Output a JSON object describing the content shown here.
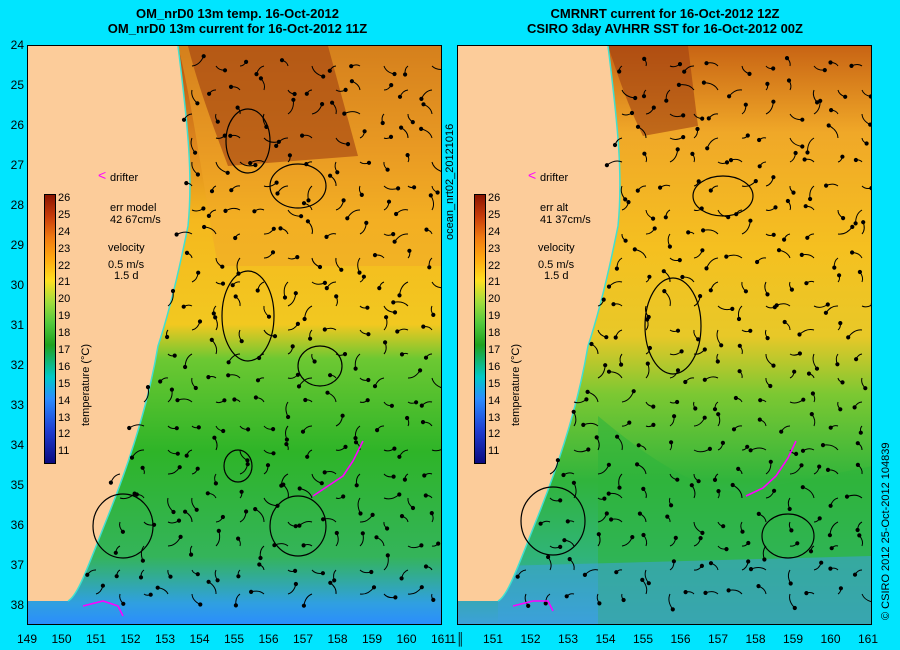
{
  "left_panel": {
    "title_line1": "OM_nrD0 13m temp. 16-Oct-2012",
    "title_line2": "OM_nrD0 13m current for 16-Oct-2012 11Z",
    "drifter_label": "drifter",
    "err_label": "err model",
    "err_value": "42 67cm/s",
    "velocity_label": "velocity",
    "velocity_scale": "0.5 m/s",
    "velocity_time": "1.5 d"
  },
  "right_panel": {
    "title_line1": "CMRNRT current for 16-Oct-2012 12Z",
    "title_line2": "CSIRO 3day AVHRR SST for 16-Oct-2012 00Z",
    "drifter_label": "drifter",
    "err_label": "err alt",
    "err_value": "41 37cm/s",
    "velocity_label": "velocity",
    "velocity_scale": "0.5 m/s",
    "velocity_time": "1.5 d"
  },
  "colorbar": {
    "label": "temperature (°C)",
    "ticks": [
      "26",
      "25",
      "24",
      "23",
      "22",
      "21",
      "20",
      "19",
      "18",
      "17",
      "16",
      "15",
      "14",
      "13",
      "12",
      "11"
    ]
  },
  "axes": {
    "lat_ticks": [
      "24",
      "25",
      "26",
      "27",
      "28",
      "29",
      "30",
      "31",
      "32",
      "33",
      "34",
      "35",
      "36",
      "37",
      "38"
    ],
    "lon_ticks_left": [
      "149",
      "150",
      "151",
      "152",
      "153",
      "154",
      "155",
      "156",
      "157",
      "158",
      "159",
      "160",
      "161"
    ],
    "lon_ticks_right": [
      "151",
      "152",
      "153",
      "154",
      "155",
      "156",
      "157",
      "158",
      "159",
      "160",
      "161"
    ],
    "right_first_tick": "1║"
  },
  "side_text": {
    "middle": "ocean_nrt02_20121016",
    "right": "© CSIRO 2012   25-Oct-2012 104839"
  },
  "colors": {
    "background": "#00e5ff",
    "land": "#fccc9a",
    "drifter": "#ff00ff",
    "coast_line": "#40e0d0"
  }
}
